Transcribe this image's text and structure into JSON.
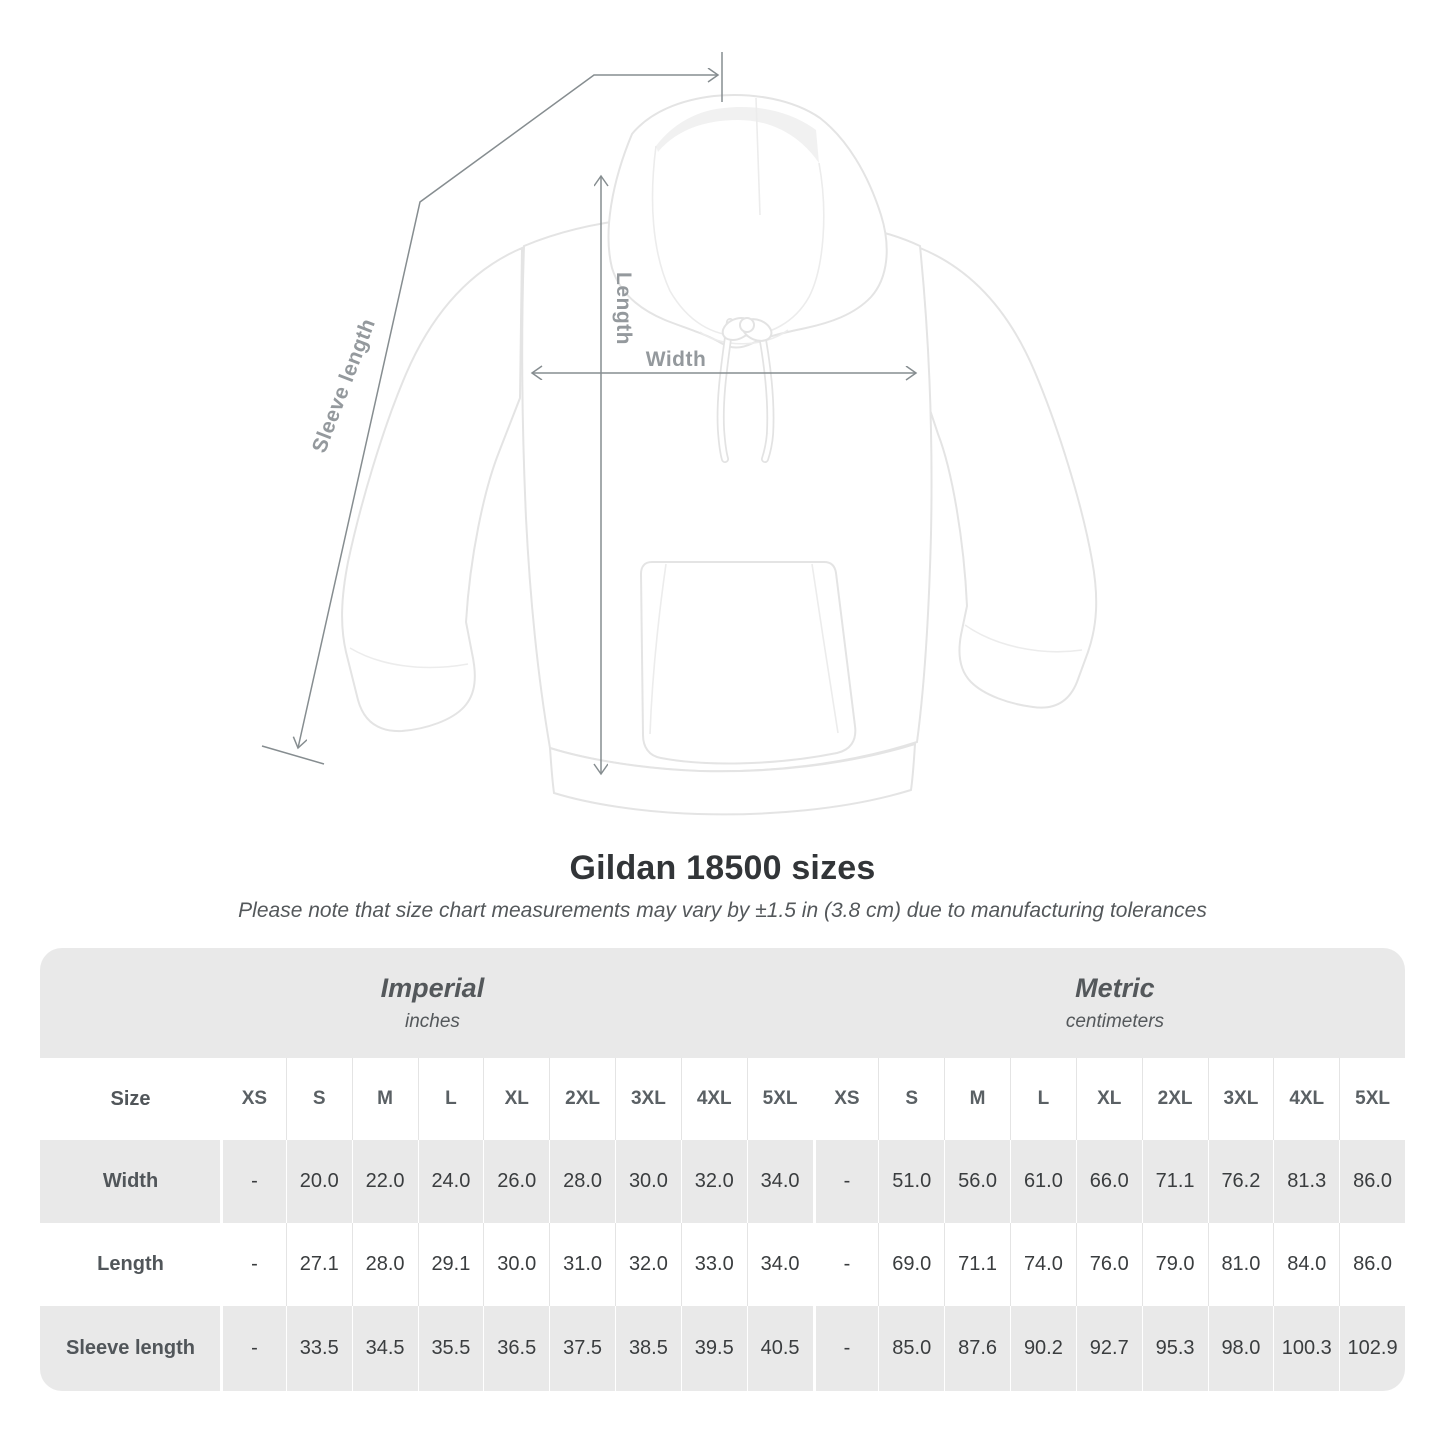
{
  "diagram": {
    "labels": {
      "length": "Length",
      "width": "Width",
      "sleeve": "Sleeve length"
    }
  },
  "title": "Gildan 18500 sizes",
  "subtitle": "Please note that size chart measurements may vary by ±1.5 in (3.8 cm) due to manufacturing tolerances",
  "table": {
    "groups": [
      {
        "title": "Imperial",
        "subtitle": "inches"
      },
      {
        "title": "Metric",
        "subtitle": "centimeters"
      }
    ],
    "corner_label": "Size",
    "sizes": [
      "XS",
      "S",
      "M",
      "L",
      "XL",
      "2XL",
      "3XL",
      "4XL",
      "5XL"
    ],
    "rows": [
      {
        "label": "Width",
        "imperial": [
          "-",
          "20.0",
          "22.0",
          "24.0",
          "26.0",
          "28.0",
          "30.0",
          "32.0",
          "34.0"
        ],
        "metric": [
          "-",
          "51.0",
          "56.0",
          "61.0",
          "66.0",
          "71.1",
          "76.2",
          "81.3",
          "86.0"
        ]
      },
      {
        "label": "Length",
        "imperial": [
          "-",
          "27.1",
          "28.0",
          "29.1",
          "30.0",
          "31.0",
          "32.0",
          "33.0",
          "34.0"
        ],
        "metric": [
          "-",
          "69.0",
          "71.1",
          "74.0",
          "76.0",
          "79.0",
          "81.0",
          "84.0",
          "86.0"
        ]
      },
      {
        "label": "Sleeve length",
        "imperial": [
          "-",
          "33.5",
          "34.5",
          "35.5",
          "36.5",
          "37.5",
          "38.5",
          "39.5",
          "40.5"
        ],
        "metric": [
          "-",
          "85.0",
          "87.6",
          "90.2",
          "92.7",
          "95.3",
          "98.0",
          "100.3",
          "102.9"
        ]
      }
    ]
  },
  "colors": {
    "band_grey": "#e9e9e9",
    "measure_line": "#868d90",
    "measure_label": "#94999d",
    "heading": "#323538",
    "muted": "#54585b",
    "value": "#3a3d3f"
  }
}
